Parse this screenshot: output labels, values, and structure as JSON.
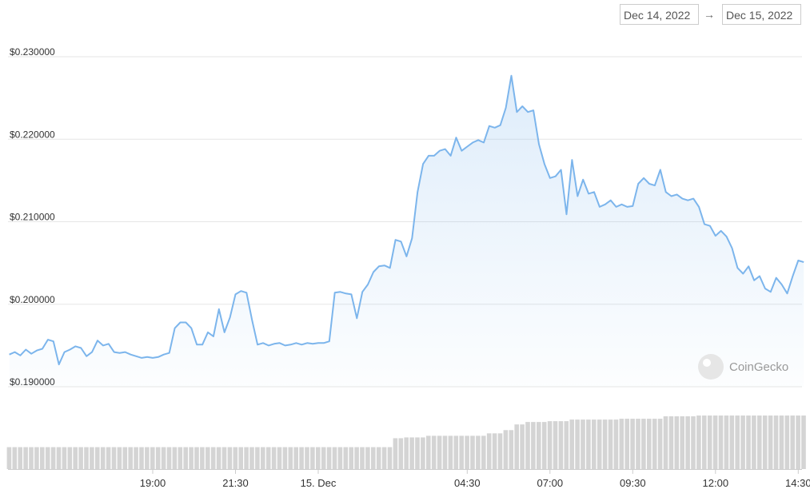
{
  "header": {
    "from": "Dec 14, 2022",
    "arrow": "→",
    "to": "Dec 15, 2022"
  },
  "chart_data": {
    "type": "line",
    "watermark": "CoinGecko",
    "color": "#7cb5ec",
    "volume_color": "#d4d4d4",
    "grid": true,
    "ylim": [
      0.19,
      0.23
    ],
    "yticks": [
      {
        "value": 0.19,
        "label": "$0.190000"
      },
      {
        "value": 0.2,
        "label": "$0.200000"
      },
      {
        "value": 0.21,
        "label": "$0.210000"
      },
      {
        "value": 0.22,
        "label": "$0.220000"
      },
      {
        "value": 0.23,
        "label": "$0.230000"
      }
    ],
    "categories": [
      null,
      null,
      null,
      null,
      null,
      null,
      null,
      null,
      null,
      null,
      null,
      null,
      null,
      null,
      null,
      null,
      null,
      null,
      null,
      null,
      null,
      null,
      null,
      null,
      null,
      null,
      "19:00",
      null,
      null,
      null,
      null,
      null,
      null,
      null,
      null,
      null,
      null,
      null,
      null,
      null,
      null,
      "21:30",
      null,
      null,
      null,
      null,
      null,
      null,
      null,
      null,
      null,
      null,
      null,
      null,
      null,
      null,
      "15. Dec",
      null,
      null,
      null,
      null,
      null,
      null,
      null,
      null,
      null,
      null,
      null,
      null,
      null,
      null,
      null,
      null,
      null,
      null,
      null,
      null,
      null,
      null,
      null,
      null,
      null,
      null,
      "04:30",
      null,
      null,
      null,
      null,
      null,
      null,
      null,
      null,
      null,
      null,
      null,
      null,
      null,
      null,
      "07:00",
      null,
      null,
      null,
      null,
      null,
      null,
      null,
      null,
      null,
      null,
      null,
      null,
      null,
      null,
      "09:30",
      null,
      null,
      null,
      null,
      null,
      null,
      null,
      null,
      null,
      null,
      null,
      null,
      null,
      null,
      "12:00",
      null,
      null,
      null,
      null,
      null,
      null,
      null,
      null,
      null,
      null,
      null,
      null,
      null,
      null,
      "14:30",
      null
    ],
    "values": [
      0.1939,
      0.1942,
      0.1938,
      0.1945,
      0.194,
      0.1944,
      0.1946,
      0.1957,
      0.1955,
      0.1927,
      0.1942,
      0.1945,
      0.1949,
      0.1947,
      0.1937,
      0.1942,
      0.1956,
      0.195,
      0.1952,
      0.1942,
      0.1941,
      0.1942,
      0.1939,
      0.1937,
      0.1935,
      0.1936,
      0.1935,
      0.1936,
      0.1939,
      0.1941,
      0.1971,
      0.1978,
      0.1978,
      0.1971,
      0.1951,
      0.1951,
      0.1966,
      0.1961,
      0.1994,
      0.1966,
      0.1984,
      0.2012,
      0.2016,
      0.2014,
      0.1981,
      0.1951,
      0.1953,
      0.195,
      0.1952,
      0.1953,
      0.195,
      0.1951,
      0.1953,
      0.1951,
      0.1953,
      0.1952,
      0.1953,
      0.1953,
      0.1955,
      0.2014,
      0.2015,
      0.2013,
      0.2012,
      0.1983,
      0.2015,
      0.2024,
      0.2039,
      0.2046,
      0.2047,
      0.2044,
      0.2078,
      0.2076,
      0.2058,
      0.208,
      0.2136,
      0.217,
      0.218,
      0.218,
      0.2186,
      0.2188,
      0.218,
      0.2202,
      0.2186,
      0.2191,
      0.2196,
      0.2199,
      0.2196,
      0.2216,
      0.2214,
      0.2217,
      0.2238,
      0.2277,
      0.2233,
      0.224,
      0.2233,
      0.2235,
      0.2194,
      0.217,
      0.2153,
      0.2155,
      0.2163,
      0.2109,
      0.2175,
      0.2131,
      0.2151,
      0.2134,
      0.2136,
      0.2118,
      0.2121,
      0.2126,
      0.2118,
      0.2121,
      0.2118,
      0.2119,
      0.2146,
      0.2153,
      0.2146,
      0.2144,
      0.2163,
      0.2136,
      0.2131,
      0.2133,
      0.2128,
      0.2126,
      0.2128,
      0.2118,
      0.2097,
      0.2095,
      0.2083,
      0.2089,
      0.2082,
      0.2068,
      0.2044,
      0.2037,
      0.2046,
      0.2029,
      0.2034,
      0.2019,
      0.2015,
      0.2032,
      0.2024,
      0.2013,
      0.2034,
      0.2053,
      0.2051
    ],
    "volumes": [
      27,
      27,
      27,
      27,
      27,
      27,
      27,
      27,
      27,
      27,
      27,
      27,
      27,
      27,
      27,
      27,
      27,
      27,
      27,
      27,
      27,
      27,
      27,
      27,
      27,
      27,
      27,
      27,
      27,
      27,
      27,
      27,
      27,
      27,
      27,
      27,
      27,
      27,
      27,
      27,
      27,
      27,
      27,
      27,
      27,
      27,
      27,
      27,
      27,
      27,
      27,
      27,
      27,
      27,
      27,
      27,
      27,
      27,
      27,
      27,
      27,
      27,
      27,
      27,
      27,
      27,
      27,
      27,
      27,
      27,
      38,
      38,
      39,
      39,
      39,
      39,
      41,
      41,
      41,
      41,
      41,
      41,
      41,
      41,
      41,
      41,
      41,
      44,
      44,
      44,
      48,
      48,
      55,
      55,
      58,
      58,
      58,
      58,
      59,
      59,
      59,
      59,
      61,
      61,
      61,
      61,
      61,
      61,
      61,
      61,
      61,
      62,
      62,
      62,
      62,
      62,
      62,
      62,
      62,
      65,
      65,
      65,
      65,
      65,
      65,
      66,
      66,
      66,
      66,
      66,
      66,
      66,
      66,
      66,
      66,
      66,
      66,
      66,
      66,
      66,
      66,
      66,
      66,
      66,
      66
    ]
  }
}
